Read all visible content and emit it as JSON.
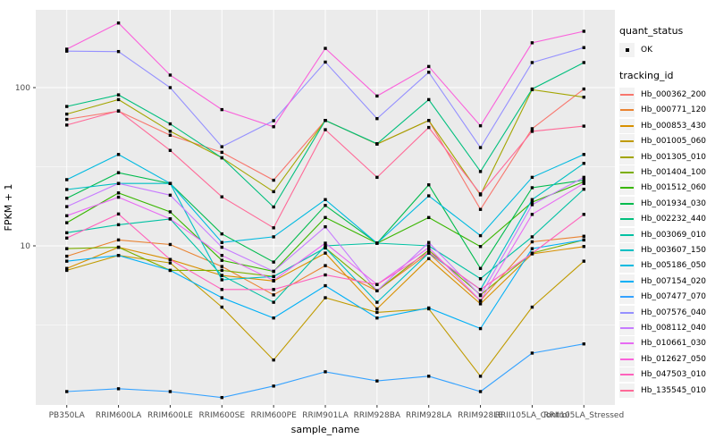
{
  "figure": {
    "y_axis": {
      "title": "FPKM + 1",
      "tick_labels": [
        "100",
        "10"
      ],
      "tick_values": [
        100,
        10
      ]
    },
    "x_axis": {
      "title": "sample_name"
    },
    "panel": {
      "background": "#ebebeb",
      "grid_color": "#ffffff"
    },
    "point_color": "#000000",
    "legend": {
      "quant_status_title": "quant_status",
      "quant_status_items": [
        "OK"
      ],
      "tracking_id_title": "tracking_id"
    }
  },
  "chart_data": {
    "type": "line",
    "title": "",
    "xlabel": "sample_name",
    "ylabel": "FPKM + 1",
    "y_scale": "log10",
    "ylim": [
      1,
      310
    ],
    "grid": true,
    "legend_position": "right",
    "marker": "black-square",
    "x": [
      "PB350LA",
      "RRIM600LA",
      "RRIM600LE",
      "RRIM600SE",
      "RRIM600PE",
      "RRIM901LA",
      "RRIM928BA",
      "RRIM928LA",
      "RRIM928LE",
      "RRII105LA_Control",
      "RRII105LA_Stressed"
    ],
    "series": [
      {
        "name": "Hb_000362_200",
        "color": "#F8766D",
        "values": [
          63,
          71,
          50,
          39,
          26,
          62,
          44,
          62,
          17,
          55,
          98
        ]
      },
      {
        "name": "Hb_000771_120",
        "color": "#EA8331",
        "values": [
          8.6,
          10.9,
          10.2,
          7.4,
          4.9,
          7.5,
          5.2,
          9.0,
          4.5,
          10.6,
          11.5
        ]
      },
      {
        "name": "Hb_000853_430",
        "color": "#D89000",
        "values": [
          7.2,
          9.8,
          8.2,
          6.5,
          6.0,
          9.0,
          4.0,
          8.3,
          4.3,
          8.9,
          9.9
        ]
      },
      {
        "name": "Hb_001005_060",
        "color": "#C09B00",
        "values": [
          7.0,
          8.7,
          7.8,
          4.1,
          1.9,
          4.7,
          3.8,
          4.0,
          1.5,
          4.1,
          8.0
        ]
      },
      {
        "name": "Hb_001305_010",
        "color": "#A3A500",
        "values": [
          68,
          84,
          53,
          36,
          22,
          62,
          44,
          62,
          21,
          97,
          87
        ]
      },
      {
        "name": "Hb_001404_100",
        "color": "#7CAE00",
        "values": [
          9.6,
          9.8,
          7.0,
          7.0,
          6.4,
          9.7,
          5.2,
          9.4,
          4.9,
          9.0,
          10.9
        ]
      },
      {
        "name": "Hb_001512_060",
        "color": "#39B600",
        "values": [
          14,
          21.6,
          16.4,
          8.1,
          6.9,
          15.1,
          10.4,
          15.1,
          9.9,
          18.9,
          25.4
        ]
      },
      {
        "name": "Hb_001934_030",
        "color": "#00BB4E",
        "values": [
          20,
          29,
          24.8,
          11.9,
          7.9,
          18,
          10.4,
          24.3,
          7.2,
          23.3,
          26
        ]
      },
      {
        "name": "Hb_002232_440",
        "color": "#00BF7D",
        "values": [
          76,
          90,
          59,
          36,
          17.6,
          62,
          44.2,
          84,
          29.5,
          98,
          144
        ]
      },
      {
        "name": "Hb_003069_010",
        "color": "#00C1A3",
        "values": [
          12.1,
          13.6,
          14.8,
          6.5,
          4.4,
          10.0,
          10.4,
          10.0,
          6.2,
          11.4,
          22.8
        ]
      },
      {
        "name": "Hb_003607_150",
        "color": "#00BFC4",
        "values": [
          22.7,
          24.8,
          24.8,
          6.1,
          6.4,
          9.7,
          4.4,
          9.0,
          5.3,
          19.6,
          33.2
        ]
      },
      {
        "name": "Hb_005186_050",
        "color": "#00BAE0",
        "values": [
          26.2,
          37.8,
          24.8,
          10.5,
          11.4,
          19.6,
          10.4,
          20.7,
          11.6,
          27.1,
          37.8
        ]
      },
      {
        "name": "Hb_007154_020",
        "color": "#00B0F6",
        "values": [
          8.0,
          8.7,
          7.0,
          4.7,
          3.5,
          5.6,
          3.5,
          4.05,
          3.0,
          9.6,
          10.9
        ]
      },
      {
        "name": "Hb_007477_070",
        "color": "#35A2FF",
        "values": [
          1.2,
          1.25,
          1.2,
          1.1,
          1.3,
          1.6,
          1.4,
          1.5,
          1.2,
          2.1,
          2.4
        ]
      },
      {
        "name": "Hb_007576_040",
        "color": "#9590FF",
        "values": [
          170,
          169,
          100,
          42.3,
          61.8,
          145,
          63.7,
          125,
          41.8,
          144,
          179
        ]
      },
      {
        "name": "Hb_008112_040",
        "color": "#C77CFF",
        "values": [
          17.7,
          24.8,
          20.9,
          9.8,
          6.9,
          13.2,
          5.2,
          10.5,
          4.85,
          18.2,
          27.1
        ]
      },
      {
        "name": "Hb_010661_030",
        "color": "#E76BF3",
        "values": [
          15.5,
          20.3,
          14.8,
          8.7,
          6.05,
          10.4,
          5.7,
          9.75,
          4.5,
          15.8,
          24.8
        ]
      },
      {
        "name": "Hb_012627_050",
        "color": "#FA62DB",
        "values": [
          175,
          256,
          120,
          72.6,
          56.6,
          177,
          88.5,
          136,
          57.4,
          192,
          227
        ]
      },
      {
        "name": "Hb_047503_010",
        "color": "#FF62BC",
        "values": [
          11.2,
          15.9,
          8.2,
          5.3,
          5.3,
          6.55,
          5.7,
          9.1,
          5.3,
          8.95,
          15.8
        ]
      },
      {
        "name": "Hb_135545_010",
        "color": "#FF6A98",
        "values": [
          58,
          71.3,
          40.1,
          20.4,
          13.0,
          54.2,
          27.1,
          56,
          21.3,
          52.9,
          57.1
        ]
      }
    ]
  }
}
